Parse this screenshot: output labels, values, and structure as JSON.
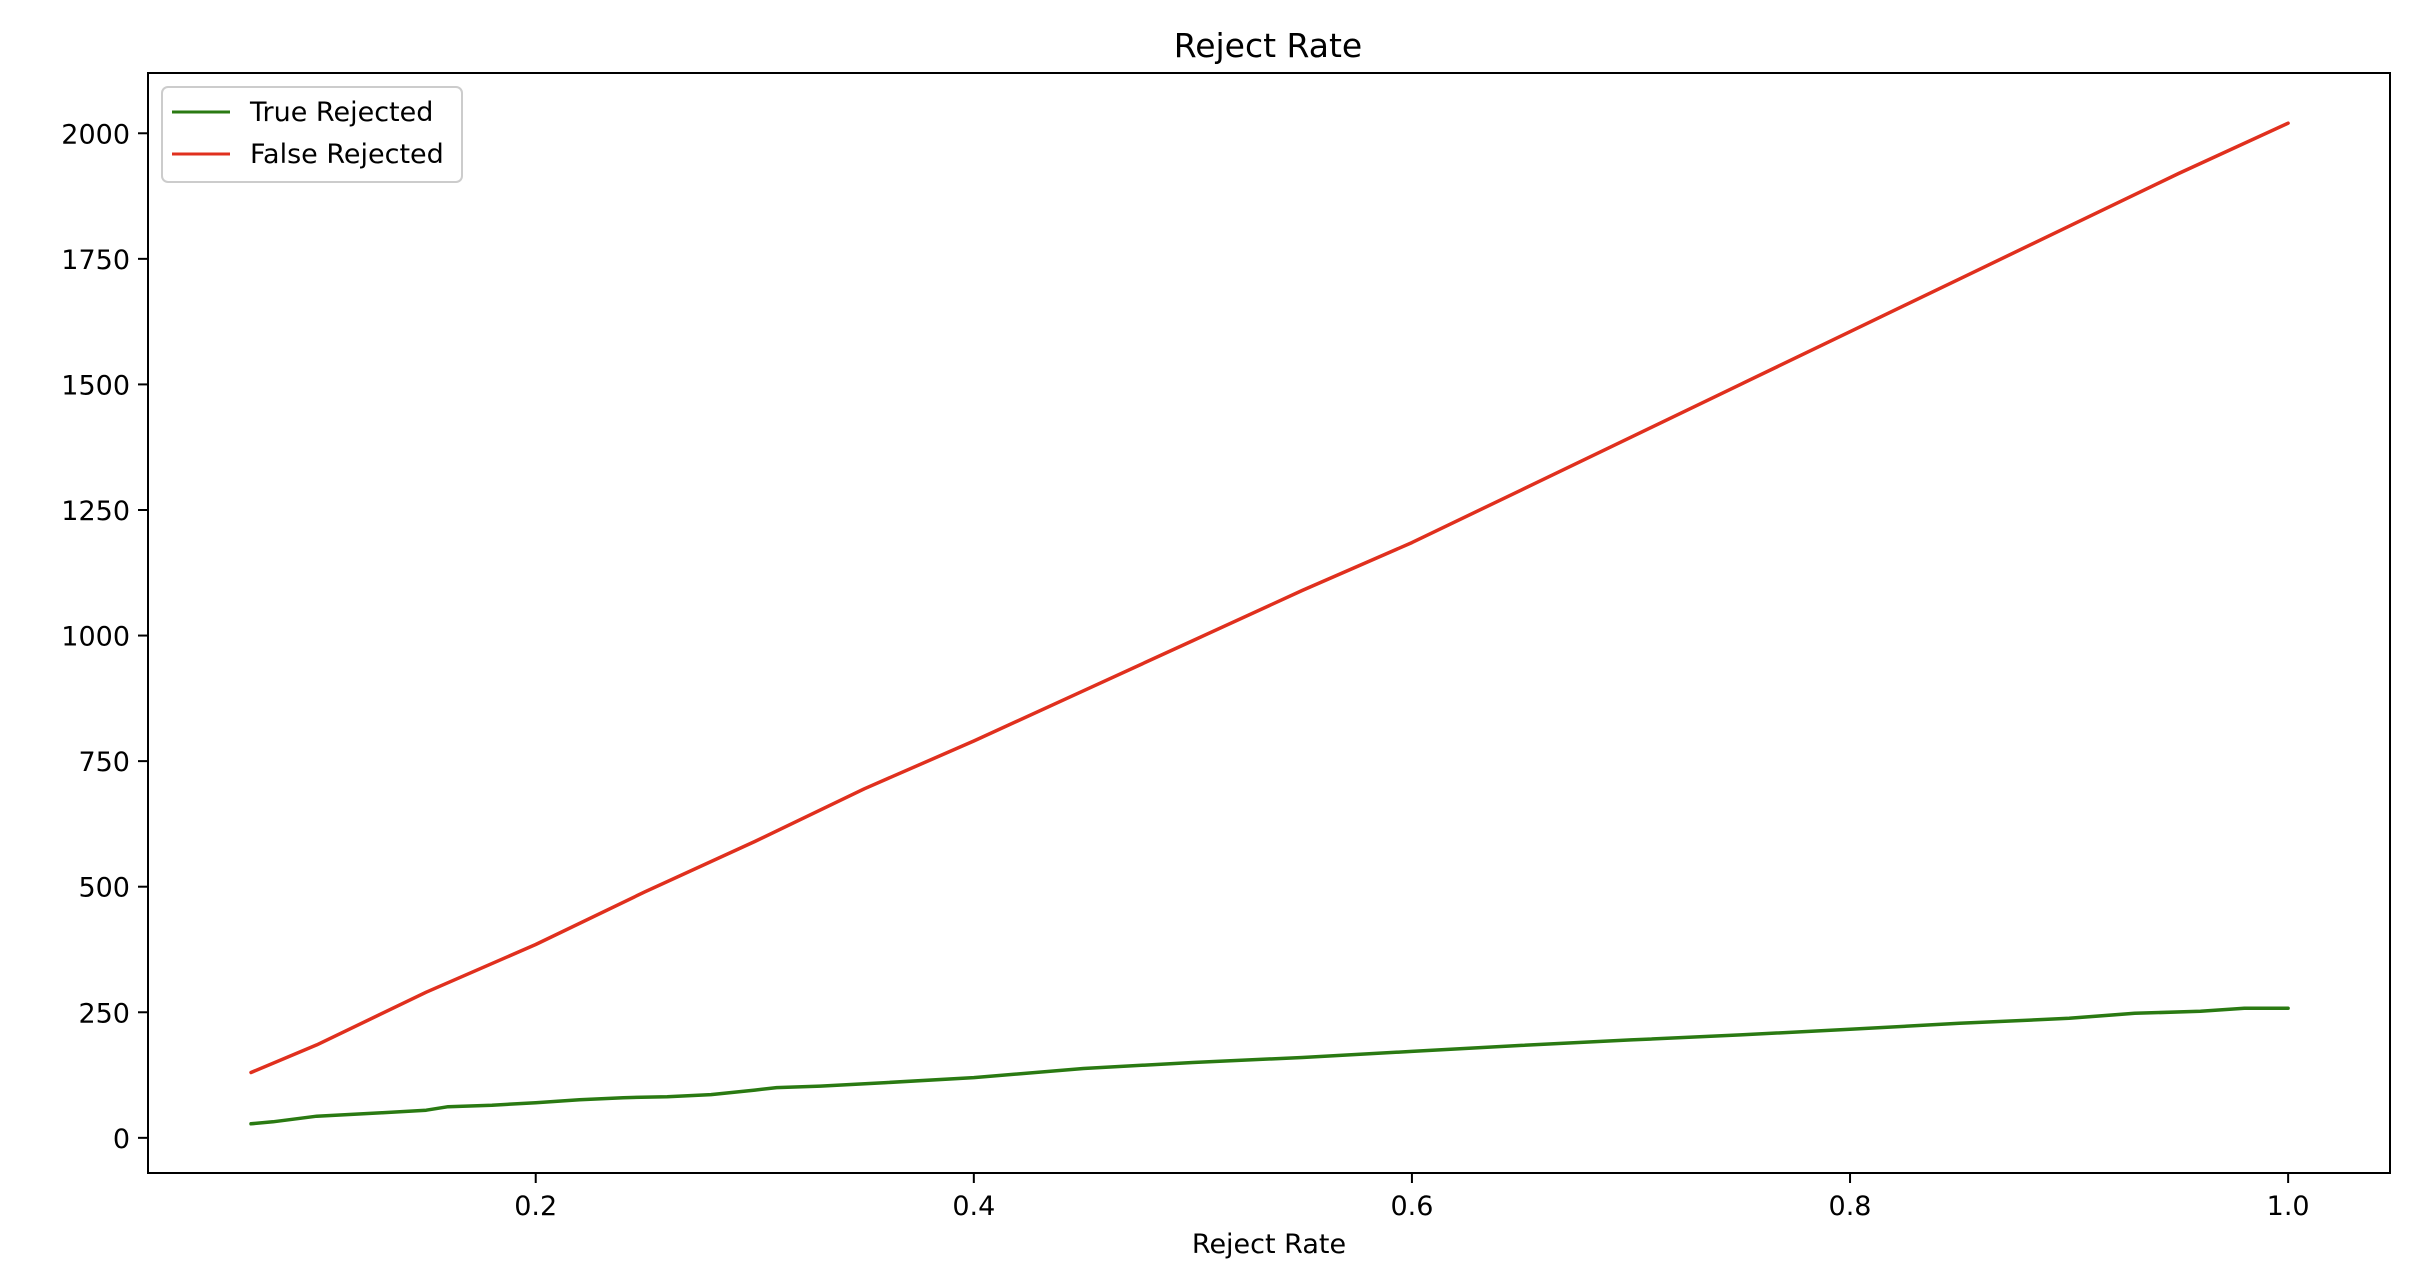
{
  "chart_data": {
    "type": "line",
    "title": "Reject Rate",
    "xlabel": "Reject Rate",
    "ylabel": "",
    "xlim": [
      0.023,
      1.0465
    ],
    "ylim": [
      -70,
      2120
    ],
    "xticks": [
      0.2,
      0.4,
      0.6,
      0.8,
      1.0
    ],
    "xtick_labels": [
      "0.2",
      "0.4",
      "0.6",
      "0.8",
      "1.0"
    ],
    "yticks": [
      0,
      250,
      500,
      750,
      1000,
      1250,
      1500,
      1750,
      2000
    ],
    "ytick_labels": [
      "0",
      "250",
      "500",
      "750",
      "1000",
      "1250",
      "1500",
      "1750",
      "2000"
    ],
    "grid": false,
    "legend_position": "top-left",
    "series": [
      {
        "name": "True Rejected",
        "color": "#2a7a12",
        "x": [
          0.07,
          0.08,
          0.1,
          0.13,
          0.15,
          0.16,
          0.18,
          0.2,
          0.22,
          0.24,
          0.26,
          0.28,
          0.3,
          0.31,
          0.33,
          0.36,
          0.4,
          0.45,
          0.5,
          0.55,
          0.6,
          0.65,
          0.7,
          0.75,
          0.8,
          0.85,
          0.9,
          0.93,
          0.96,
          0.98,
          1.0
        ],
        "y": [
          28,
          32,
          43,
          50,
          55,
          62,
          65,
          70,
          76,
          80,
          82,
          86,
          95,
          100,
          103,
          110,
          120,
          138,
          150,
          160,
          172,
          184,
          195,
          205,
          216,
          228,
          238,
          248,
          252,
          258,
          258
        ]
      },
      {
        "name": "False Rejected",
        "color": "#e0301e",
        "x": [
          0.07,
          0.1,
          0.15,
          0.2,
          0.25,
          0.3,
          0.35,
          0.4,
          0.45,
          0.5,
          0.55,
          0.6,
          0.65,
          0.7,
          0.75,
          0.8,
          0.85,
          0.9,
          0.95,
          1.0
        ],
        "y": [
          130,
          185,
          290,
          385,
          490,
          590,
          695,
          790,
          890,
          990,
          1090,
          1185,
          1290,
          1395,
          1500,
          1605,
          1710,
          1815,
          1920,
          2020
        ]
      }
    ]
  }
}
